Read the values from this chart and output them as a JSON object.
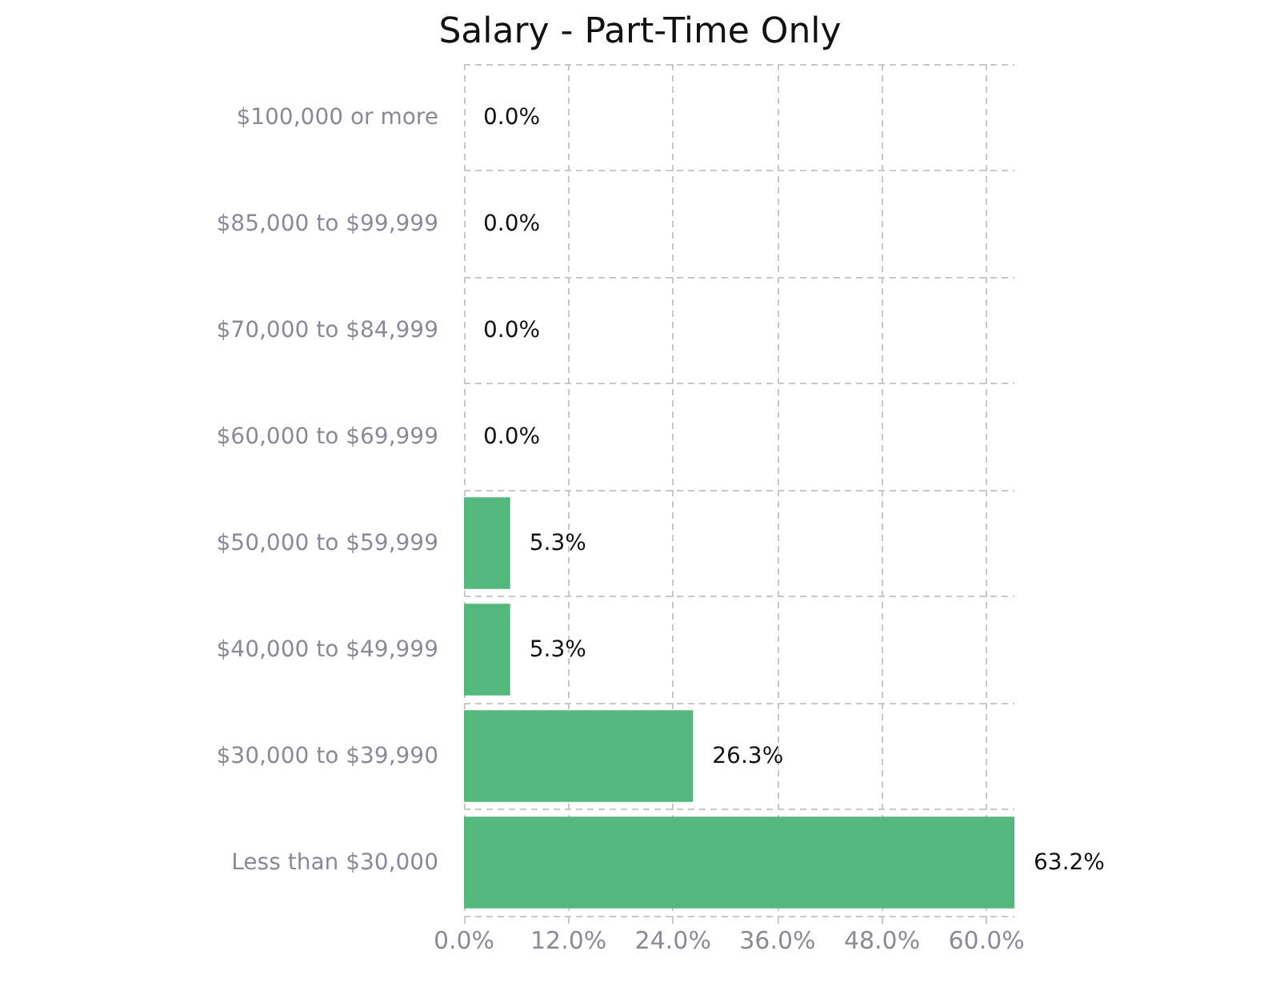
{
  "chart_data": {
    "type": "bar",
    "orientation": "horizontal",
    "title": "Salary - Part-Time Only",
    "categories": [
      "$100,000 or more",
      "$85,000 to $99,999",
      "$70,000 to $84,999",
      "$60,000 to $69,999",
      "$50,000 to $59,999",
      "$40,000 to $49,999",
      "$30,000 to $39,990",
      "Less than $30,000"
    ],
    "values": [
      0,
      0,
      0,
      0,
      5.3,
      5.3,
      26.3,
      63.2
    ],
    "value_labels": [
      "0.0%",
      "0.0%",
      "0.0%",
      "0.0%",
      "5.3%",
      "5.3%",
      "26.3%",
      "63.2%"
    ],
    "color": "#52b87c",
    "xlim": [
      0,
      63.2
    ],
    "xticks": [
      {
        "value": 0,
        "label": "0.0%"
      },
      {
        "value": 12,
        "label": "12.0%"
      },
      {
        "value": 24,
        "label": "24.0%"
      },
      {
        "value": 36,
        "label": "36.0%"
      },
      {
        "value": 48,
        "label": "48.0%"
      },
      {
        "value": 60,
        "label": "60.0%"
      }
    ],
    "grid": true
  }
}
